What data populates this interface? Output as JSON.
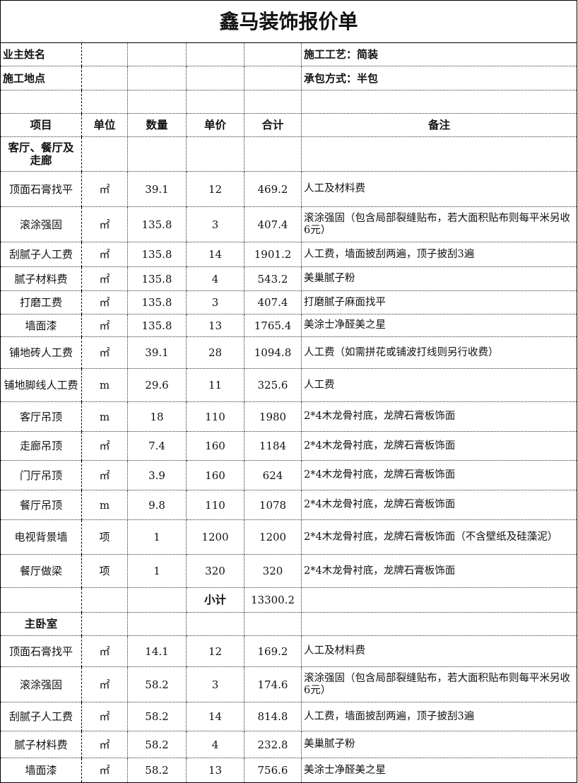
{
  "title": "鑫马装饰报价单",
  "info": {
    "owner_label": "业主姓名",
    "location_label": "施工地点",
    "craft": "施工工艺：简装",
    "contract": "承包方式：半包"
  },
  "headers": [
    "项目",
    "单位",
    "数量",
    "单价",
    "合计",
    "备注"
  ],
  "sections": [
    {
      "name": "客厅、餐厅及走廊",
      "rows": [
        [
          "顶面石膏找平",
          "㎡",
          "39.1",
          "12",
          "469.2",
          "人工及材料费"
        ],
        [
          "滚涂强固",
          "㎡",
          "135.8",
          "3",
          "407.4",
          "滚涂强固（包含局部裂缝贴布，若大面积贴布则每平米另收6元）"
        ],
        [
          "刮腻子人工费",
          "㎡",
          "135.8",
          "14",
          "1901.2",
          "人工费，墙面披刮两遍，顶子披刮3遍"
        ],
        [
          "腻子材料费",
          "㎡",
          "135.8",
          "4",
          "543.2",
          "美巢腻子粉"
        ],
        [
          "打磨工费",
          "㎡",
          "135.8",
          "3",
          "407.4",
          "打磨腻子麻面找平"
        ],
        [
          "墙面漆",
          "㎡",
          "135.8",
          "13",
          "1765.4",
          "美涂士净醛美之星"
        ],
        [
          "铺地砖人工费",
          "㎡",
          "39.1",
          "28",
          "1094.8",
          "人工费（如需拼花或铺波打线则另行收费）"
        ],
        [
          "铺地脚线人工费",
          "m",
          "29.6",
          "11",
          "325.6",
          "人工费"
        ],
        [
          "客厅吊顶",
          "m",
          "18",
          "110",
          "1980",
          "2*4木龙骨衬底，龙牌石膏板饰面"
        ],
        [
          "走廊吊顶",
          "㎡",
          "7.4",
          "160",
          "1184",
          "2*4木龙骨衬底，龙牌石膏板饰面"
        ],
        [
          "门厅吊顶",
          "㎡",
          "3.9",
          "160",
          "624",
          "2*4木龙骨衬底，龙牌石膏板饰面"
        ],
        [
          "餐厅吊顶",
          "m",
          "9.8",
          "110",
          "1078",
          "2*4木龙骨衬底，龙牌石膏板饰面"
        ],
        [
          "电视背景墙",
          "项",
          "1",
          "1200",
          "1200",
          "2*4木龙骨衬底，龙牌石膏板饰面（不含壁纸及硅藻泥）"
        ],
        [
          "餐厅做梁",
          "项",
          "1",
          "320",
          "320",
          "2*4木龙骨衬底，龙牌石膏板饰面"
        ]
      ],
      "subtotal_label": "小计",
      "subtotal": "13300.2"
    },
    {
      "name": "主卧室",
      "rows": [
        [
          "顶面石膏找平",
          "㎡",
          "14.1",
          "12",
          "169.2",
          "人工及材料费"
        ],
        [
          "滚涂强固",
          "㎡",
          "58.2",
          "3",
          "174.6",
          "滚涂强固（包含局部裂缝贴布，若大面积贴布则每平米另收6元）"
        ],
        [
          "刮腻子人工费",
          "㎡",
          "58.2",
          "14",
          "814.8",
          "人工费，墙面披刮两遍，顶子披刮3遍"
        ],
        [
          "腻子材料费",
          "㎡",
          "58.2",
          "4",
          "232.8",
          "美巢腻子粉"
        ],
        [
          "墙面漆",
          "㎡",
          "58.2",
          "13",
          "756.6",
          "美涂士净醛美之星"
        ]
      ]
    }
  ]
}
